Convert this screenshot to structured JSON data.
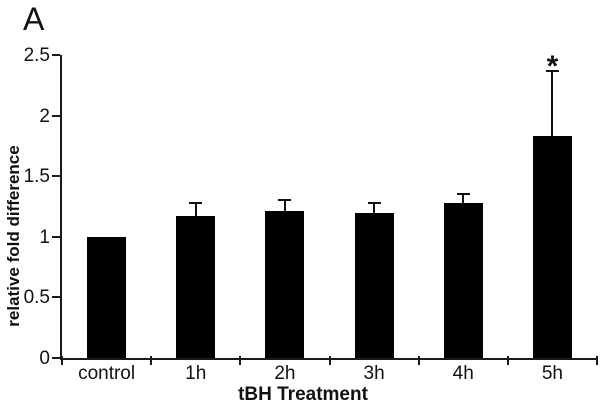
{
  "page": {
    "panel_label": "A",
    "background_color": "#ffffff",
    "text_color": "#111111"
  },
  "chart_data": {
    "type": "bar",
    "title": "",
    "xlabel": "tBH Treatment",
    "ylabel": "relative fold difference",
    "categories": [
      "control",
      "1h",
      "2h",
      "3h",
      "4h",
      "5h"
    ],
    "values": [
      1.0,
      1.17,
      1.21,
      1.2,
      1.28,
      1.83
    ],
    "errors_plus": [
      0,
      0.12,
      0.1,
      0.09,
      0.08,
      0.55
    ],
    "ylim": [
      0,
      2.5
    ],
    "yticks": [
      0,
      0.5,
      1,
      1.5,
      2,
      2.5
    ],
    "ytick_labels": [
      "0",
      "0.5",
      "1",
      "1.5",
      "2",
      "2.5"
    ],
    "bar_color": "#000000",
    "axis_color": "#1a1a1a",
    "grid": false,
    "legend": null,
    "annotations": [
      {
        "text": "*",
        "category": "5h",
        "category_index": 5,
        "meaning": "significance-marker"
      }
    ]
  }
}
